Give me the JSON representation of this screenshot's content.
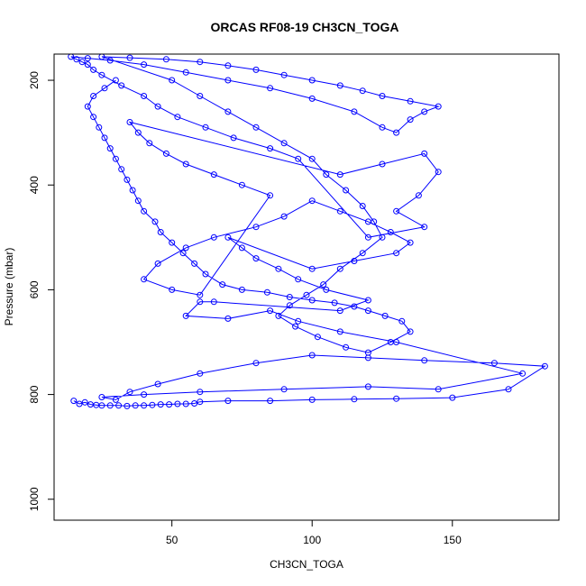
{
  "chart_data": {
    "type": "scatter",
    "title": "ORCAS RF08-19 CH3CN_TOGA",
    "xlabel": "CH3CN_TOGA",
    "ylabel": "Pressure (mbar)",
    "xlim": [
      8,
      188
    ],
    "ylim": [
      1040,
      150
    ],
    "y_reversed": true,
    "x_ticks": [
      50,
      100,
      150
    ],
    "y_ticks": [
      200,
      400,
      600,
      800,
      1000
    ],
    "grid": false,
    "legend": "none",
    "marker": "open-circle",
    "connect_points": true,
    "series_color": "#0000ff",
    "series": [
      {
        "points": [
          [
            15,
            812
          ],
          [
            17,
            818
          ],
          [
            19,
            815
          ],
          [
            21,
            819
          ],
          [
            23,
            820
          ],
          [
            25,
            821
          ],
          [
            28,
            821
          ],
          [
            31,
            821
          ],
          [
            34,
            822
          ],
          [
            37,
            821
          ],
          [
            40,
            821
          ],
          [
            43,
            820
          ],
          [
            46,
            819
          ],
          [
            49,
            819
          ],
          [
            52,
            818
          ],
          [
            55,
            818
          ],
          [
            58,
            817
          ],
          [
            60,
            814
          ],
          [
            70,
            812
          ],
          [
            85,
            812
          ],
          [
            100,
            810
          ],
          [
            115,
            809
          ],
          [
            130,
            808
          ],
          [
            150,
            806
          ],
          [
            170,
            790
          ],
          [
            183,
            746
          ],
          [
            165,
            740
          ],
          [
            140,
            735
          ],
          [
            120,
            730
          ],
          [
            100,
            725
          ],
          [
            80,
            740
          ],
          [
            60,
            760
          ],
          [
            45,
            780
          ],
          [
            35,
            795
          ],
          [
            30,
            810
          ],
          [
            25,
            805
          ],
          [
            40,
            800
          ],
          [
            60,
            795
          ],
          [
            90,
            790
          ],
          [
            120,
            785
          ],
          [
            145,
            790
          ],
          [
            175,
            760
          ],
          [
            130,
            700
          ],
          [
            110,
            680
          ],
          [
            95,
            660
          ],
          [
            85,
            640
          ],
          [
            70,
            655
          ],
          [
            55,
            650
          ],
          [
            60,
            623
          ],
          [
            65,
            623
          ],
          [
            110,
            640
          ],
          [
            120,
            620
          ],
          [
            105,
            600
          ],
          [
            95,
            580
          ],
          [
            88,
            560
          ],
          [
            80,
            540
          ],
          [
            75,
            520
          ],
          [
            70,
            500
          ],
          [
            100,
            560
          ],
          [
            115,
            545
          ],
          [
            130,
            530
          ],
          [
            135,
            510
          ],
          [
            128,
            490
          ],
          [
            120,
            470
          ],
          [
            110,
            450
          ],
          [
            100,
            430
          ],
          [
            90,
            460
          ],
          [
            80,
            480
          ],
          [
            65,
            500
          ],
          [
            55,
            520
          ],
          [
            45,
            550
          ],
          [
            40,
            580
          ],
          [
            50,
            600
          ],
          [
            60,
            610
          ],
          [
            85,
            420
          ],
          [
            75,
            400
          ],
          [
            65,
            380
          ],
          [
            55,
            360
          ],
          [
            48,
            340
          ],
          [
            42,
            320
          ],
          [
            38,
            300
          ],
          [
            35,
            280
          ],
          [
            110,
            380
          ],
          [
            125,
            360
          ],
          [
            140,
            340
          ],
          [
            145,
            375
          ],
          [
            138,
            420
          ],
          [
            130,
            450
          ],
          [
            140,
            480
          ],
          [
            120,
            500
          ],
          [
            95,
            350
          ],
          [
            85,
            330
          ],
          [
            72,
            310
          ],
          [
            62,
            290
          ],
          [
            52,
            270
          ],
          [
            45,
            250
          ],
          [
            40,
            230
          ],
          [
            32,
            210
          ],
          [
            25,
            190
          ],
          [
            22,
            180
          ],
          [
            20,
            170
          ],
          [
            18,
            165
          ],
          [
            16,
            160
          ],
          [
            14,
            155
          ],
          [
            20,
            158
          ],
          [
            28,
            162
          ],
          [
            40,
            170
          ],
          [
            55,
            185
          ],
          [
            70,
            200
          ],
          [
            85,
            215
          ],
          [
            100,
            235
          ],
          [
            115,
            260
          ],
          [
            125,
            290
          ],
          [
            130,
            300
          ],
          [
            135,
            275
          ],
          [
            140,
            260
          ],
          [
            145,
            250
          ],
          [
            135,
            240
          ],
          [
            125,
            230
          ],
          [
            118,
            220
          ],
          [
            110,
            210
          ],
          [
            100,
            200
          ],
          [
            90,
            190
          ],
          [
            80,
            180
          ],
          [
            70,
            172
          ],
          [
            60,
            165
          ],
          [
            48,
            160
          ],
          [
            35,
            157
          ],
          [
            25,
            155
          ],
          [
            50,
            200
          ],
          [
            60,
            230
          ],
          [
            70,
            260
          ],
          [
            80,
            290
          ],
          [
            90,
            320
          ],
          [
            100,
            350
          ],
          [
            105,
            380
          ],
          [
            112,
            410
          ],
          [
            118,
            440
          ],
          [
            122,
            470
          ],
          [
            125,
            500
          ],
          [
            118,
            530
          ],
          [
            110,
            560
          ],
          [
            104,
            590
          ],
          [
            98,
            610
          ],
          [
            92,
            630
          ],
          [
            88,
            650
          ],
          [
            94,
            670
          ],
          [
            102,
            690
          ],
          [
            112,
            710
          ],
          [
            120,
            720
          ],
          [
            128,
            700
          ],
          [
            135,
            680
          ],
          [
            132,
            660
          ],
          [
            126,
            650
          ],
          [
            120,
            640
          ],
          [
            115,
            632
          ],
          [
            108,
            625
          ],
          [
            100,
            620
          ],
          [
            92,
            614
          ],
          [
            84,
            605
          ],
          [
            75,
            600
          ],
          [
            68,
            590
          ],
          [
            62,
            570
          ],
          [
            58,
            550
          ],
          [
            54,
            530
          ],
          [
            50,
            510
          ],
          [
            46,
            490
          ],
          [
            44,
            470
          ],
          [
            40,
            450
          ],
          [
            38,
            430
          ],
          [
            36,
            410
          ],
          [
            34,
            390
          ],
          [
            32,
            370
          ],
          [
            30,
            350
          ],
          [
            28,
            330
          ],
          [
            26,
            310
          ],
          [
            24,
            290
          ],
          [
            22,
            270
          ],
          [
            20,
            250
          ],
          [
            22,
            230
          ],
          [
            26,
            215
          ],
          [
            30,
            200
          ]
        ]
      }
    ]
  }
}
